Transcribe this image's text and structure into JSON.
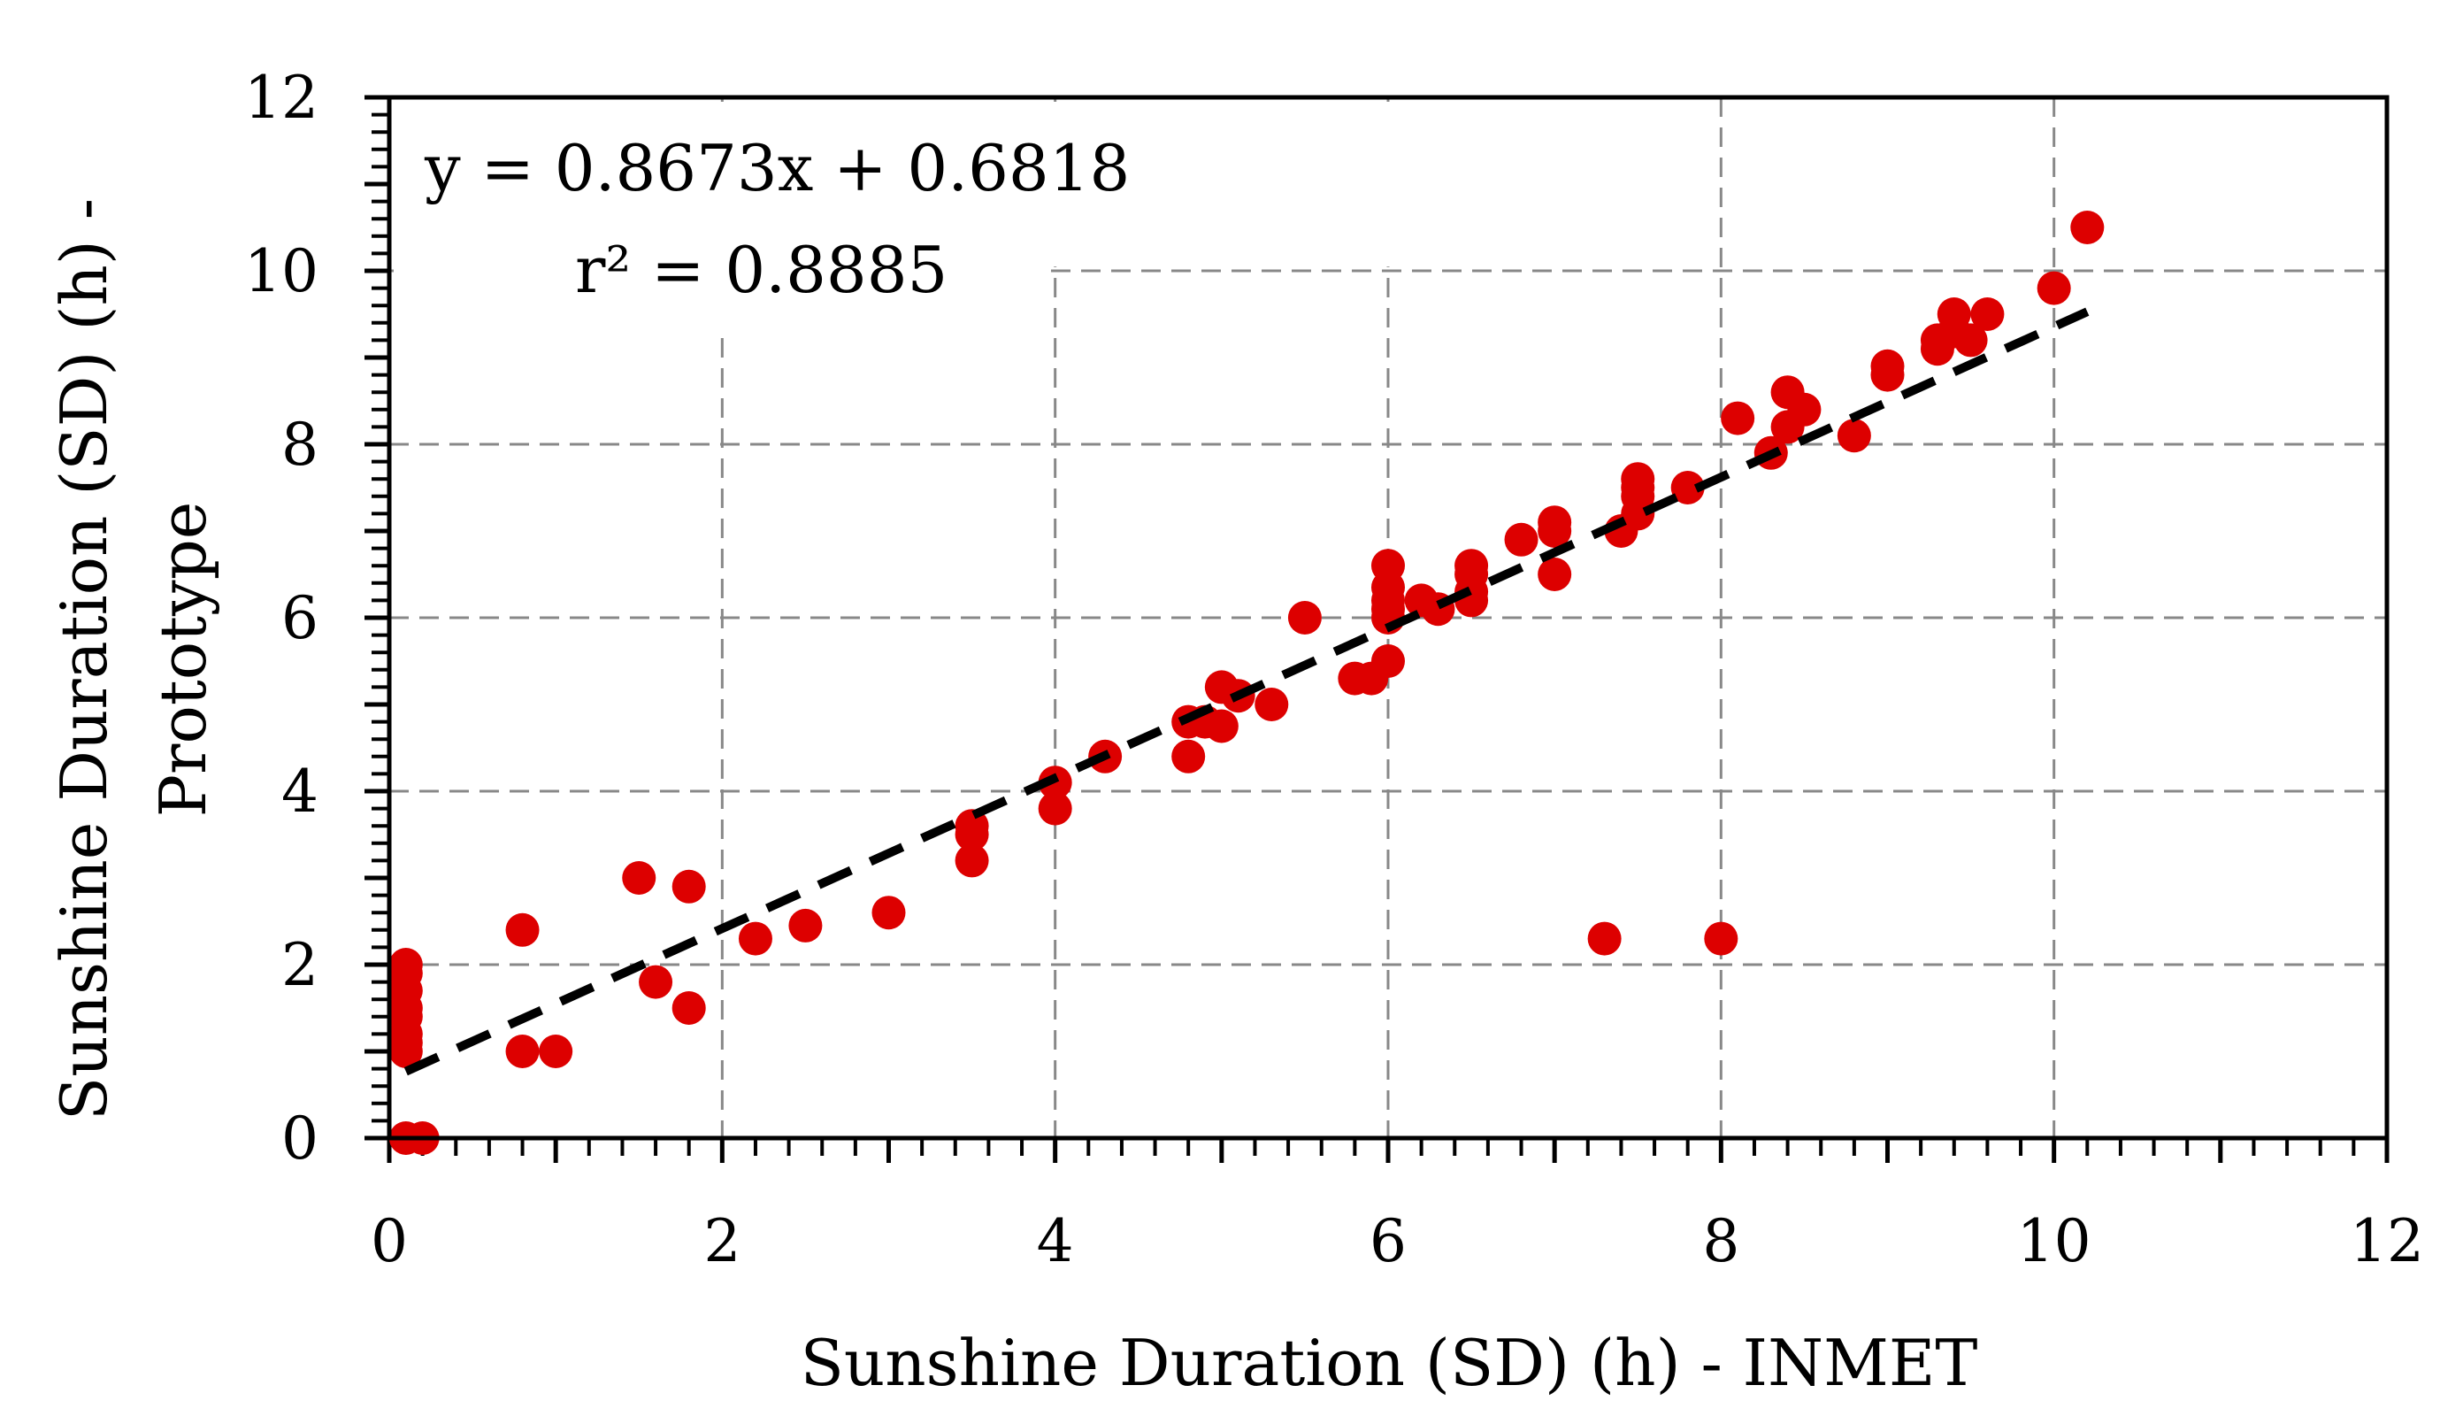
{
  "chart_data": {
    "type": "scatter",
    "title": "",
    "xlabel": "Sunshine Duration (SD) (h) - INMET",
    "ylabel_line1": "Sunshine Duration (SD) (h) -",
    "ylabel_line2": "Prototype",
    "xlim": [
      0,
      12
    ],
    "ylim": [
      0,
      12
    ],
    "xticks": [
      "0",
      "2",
      "4",
      "6",
      "8",
      "10",
      "12"
    ],
    "yticks": [
      "0",
      "2",
      "4",
      "6",
      "8",
      "10",
      "12"
    ],
    "grid": true,
    "legend": "none",
    "annotations": {
      "equation": "y = 0.8673x + 0.6818",
      "r_squared": "r² = 0.8885"
    },
    "trendline": {
      "slope": 0.8673,
      "intercept": 0.6818,
      "x_range": [
        0.1,
        10.2
      ]
    },
    "colors": {
      "marker": "#dd0000",
      "trendline": "#000000",
      "grid": "#888888"
    },
    "series": [
      {
        "name": "SD",
        "points": [
          [
            0.1,
            0.0
          ],
          [
            0.2,
            0.0
          ],
          [
            0.1,
            1.0
          ],
          [
            0.1,
            1.1
          ],
          [
            0.1,
            1.2
          ],
          [
            0.1,
            1.4
          ],
          [
            0.1,
            1.5
          ],
          [
            0.1,
            1.7
          ],
          [
            0.1,
            1.9
          ],
          [
            0.1,
            2.0
          ],
          [
            0.8,
            1.0
          ],
          [
            1.0,
            1.0
          ],
          [
            0.8,
            2.4
          ],
          [
            1.5,
            3.0
          ],
          [
            1.6,
            1.8
          ],
          [
            1.8,
            2.9
          ],
          [
            1.8,
            1.5
          ],
          [
            2.2,
            2.3
          ],
          [
            2.5,
            2.45
          ],
          [
            3.0,
            2.6
          ],
          [
            3.5,
            3.2
          ],
          [
            3.5,
            3.5
          ],
          [
            3.5,
            3.6
          ],
          [
            4.0,
            3.8
          ],
          [
            4.0,
            4.1
          ],
          [
            4.3,
            4.4
          ],
          [
            4.8,
            4.4
          ],
          [
            4.8,
            4.8
          ],
          [
            4.9,
            4.8
          ],
          [
            5.0,
            4.75
          ],
          [
            5.0,
            5.2
          ],
          [
            5.1,
            5.1
          ],
          [
            5.3,
            5.0
          ],
          [
            5.5,
            6.0
          ],
          [
            5.8,
            5.3
          ],
          [
            5.9,
            5.3
          ],
          [
            6.0,
            5.5
          ],
          [
            6.0,
            6.0
          ],
          [
            6.0,
            6.1
          ],
          [
            6.0,
            6.2
          ],
          [
            6.0,
            6.35
          ],
          [
            6.0,
            6.6
          ],
          [
            6.2,
            6.2
          ],
          [
            6.3,
            6.1
          ],
          [
            6.5,
            6.2
          ],
          [
            6.5,
            6.3
          ],
          [
            6.5,
            6.5
          ],
          [
            6.5,
            6.6
          ],
          [
            6.8,
            6.9
          ],
          [
            7.0,
            6.5
          ],
          [
            7.0,
            7.0
          ],
          [
            7.0,
            7.1
          ],
          [
            7.4,
            7.0
          ],
          [
            7.5,
            7.2
          ],
          [
            7.5,
            7.4
          ],
          [
            7.5,
            7.5
          ],
          [
            7.5,
            7.6
          ],
          [
            7.8,
            7.5
          ],
          [
            7.3,
            2.3
          ],
          [
            8.0,
            2.3
          ],
          [
            8.1,
            8.3
          ],
          [
            8.3,
            7.9
          ],
          [
            8.4,
            8.2
          ],
          [
            8.4,
            8.6
          ],
          [
            8.5,
            8.4
          ],
          [
            8.8,
            8.1
          ],
          [
            9.0,
            8.8
          ],
          [
            9.0,
            8.9
          ],
          [
            9.3,
            9.1
          ],
          [
            9.3,
            9.2
          ],
          [
            9.4,
            9.3
          ],
          [
            9.4,
            9.5
          ],
          [
            9.5,
            9.2
          ],
          [
            9.6,
            9.5
          ],
          [
            10.0,
            9.8
          ],
          [
            10.2,
            10.5
          ]
        ]
      }
    ]
  }
}
